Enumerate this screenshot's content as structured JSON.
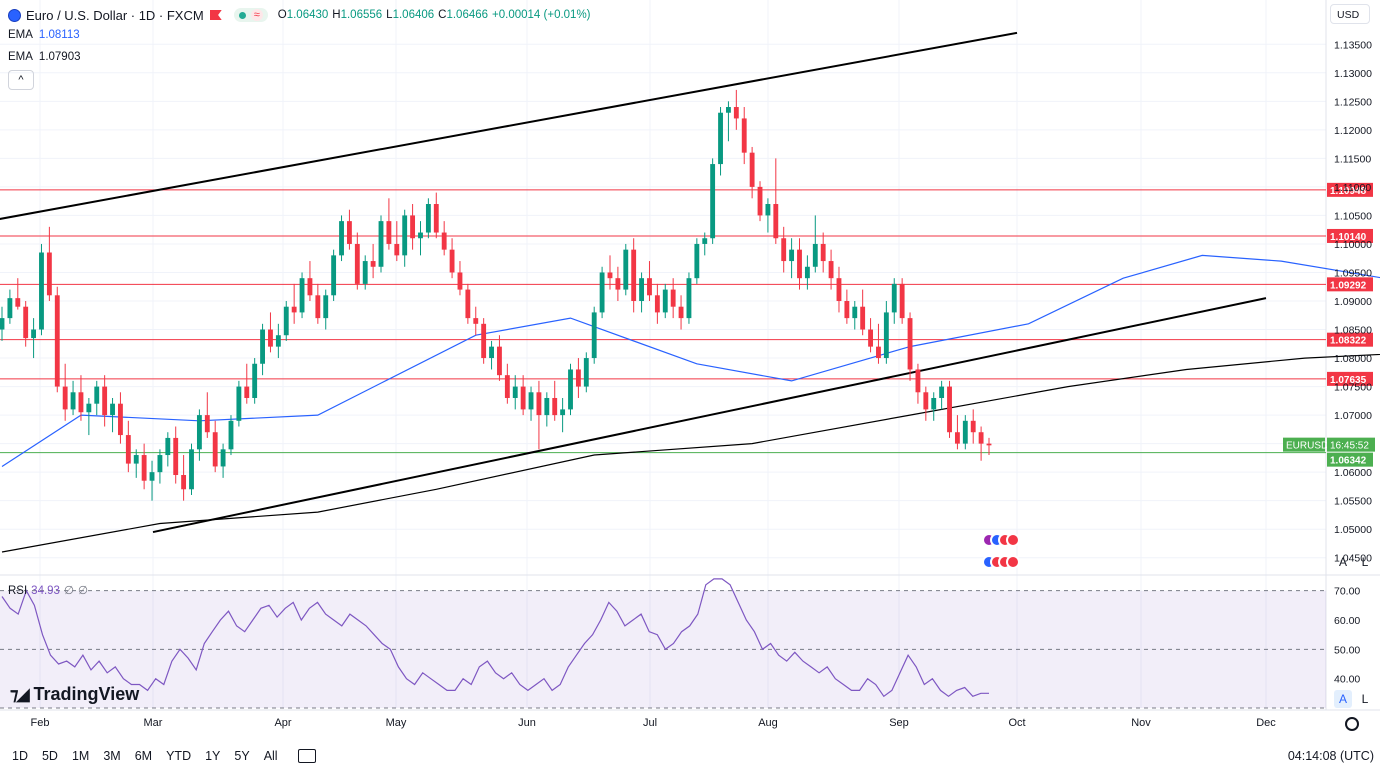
{
  "header": {
    "title": "Euro / U.S. Dollar · 1D · FXCM",
    "ohlc": {
      "o_label": "O",
      "o": "1.06430",
      "h_label": "H",
      "h": "1.06556",
      "l_label": "L",
      "l": "1.06406",
      "c_label": "C",
      "c": "1.06466",
      "chg": "+0.00014 (+0.01%)"
    },
    "ema1": {
      "label": "EMA",
      "value": "1.08113"
    },
    "ema2": {
      "label": "EMA",
      "value": "1.07903"
    },
    "collapse_glyph": "^"
  },
  "currency": "USD",
  "axis_buttons": {
    "auto": "A",
    "log": "L"
  },
  "rsi": {
    "label": "RSI",
    "value": "34.93",
    "z1": "∅",
    "z2": "∅"
  },
  "logo": "TradingView",
  "bottom_toolbar": {
    "timeframes": [
      "1D",
      "5D",
      "1M",
      "3M",
      "6M",
      "YTD",
      "1Y",
      "5Y",
      "All"
    ],
    "clock": "04:14:08 (UTC)"
  },
  "colors": {
    "up": "#089981",
    "down": "#f23645",
    "ema_fast": "#2962ff",
    "ema_slow": "#000000",
    "rsi": "#7e57c2",
    "hline": "#f23645",
    "current": "#4caf50"
  },
  "chart_data": {
    "type": "candlestick",
    "symbol": "EURUSD",
    "y_ticks": [
      "1.13500",
      "1.13000",
      "1.12500",
      "1.12000",
      "1.11500",
      "1.11000",
      "1.10500",
      "1.10000",
      "1.09500",
      "1.09000",
      "1.08500",
      "1.08000",
      "1.07500",
      "1.07000",
      "1.06500",
      "1.06000",
      "1.05500",
      "1.05000",
      "1.04500"
    ],
    "ylim": [
      1.0425,
      1.1375
    ],
    "x_labels": [
      "Feb",
      "Mar",
      "Apr",
      "May",
      "Jun",
      "Jul",
      "Aug",
      "Sep",
      "Oct",
      "Nov",
      "Dec"
    ],
    "horizontal_levels": [
      1.10948,
      1.1014,
      1.09292,
      1.08322,
      1.07635
    ],
    "level_labels": [
      "1.10948",
      "1.10140",
      "1.09292",
      "1.08322",
      "1.07635"
    ],
    "current_price": "1.06342",
    "current_time": "16:45:52",
    "candles": [
      [
        1.085,
        1.089,
        1.083,
        1.087
      ],
      [
        1.087,
        1.092,
        1.086,
        1.0905
      ],
      [
        1.0905,
        1.094,
        1.0885,
        1.089
      ],
      [
        1.089,
        1.09,
        1.082,
        1.0835
      ],
      [
        1.0835,
        1.087,
        1.08,
        1.085
      ],
      [
        1.085,
        1.1,
        1.084,
        1.0985
      ],
      [
        1.0985,
        1.103,
        1.09,
        1.091
      ],
      [
        1.091,
        1.0925,
        1.074,
        1.075
      ],
      [
        1.075,
        1.079,
        1.069,
        1.071
      ],
      [
        1.071,
        1.076,
        1.07,
        1.074
      ],
      [
        1.074,
        1.077,
        1.069,
        1.0705
      ],
      [
        1.0705,
        1.073,
        1.0665,
        1.072
      ],
      [
        1.072,
        1.076,
        1.07,
        1.075
      ],
      [
        1.075,
        1.077,
        1.068,
        1.07
      ],
      [
        1.07,
        1.073,
        1.067,
        1.072
      ],
      [
        1.072,
        1.074,
        1.065,
        1.0665
      ],
      [
        1.0665,
        1.069,
        1.06,
        1.0615
      ],
      [
        1.0615,
        1.064,
        1.059,
        1.063
      ],
      [
        1.063,
        1.065,
        1.057,
        1.0585
      ],
      [
        1.0585,
        1.062,
        1.055,
        1.06
      ],
      [
        1.06,
        1.064,
        1.058,
        1.063
      ],
      [
        1.063,
        1.067,
        1.061,
        1.066
      ],
      [
        1.066,
        1.068,
        1.058,
        1.0595
      ],
      [
        1.0595,
        1.063,
        1.055,
        1.057
      ],
      [
        1.057,
        1.065,
        1.056,
        1.064
      ],
      [
        1.064,
        1.071,
        1.062,
        1.07
      ],
      [
        1.07,
        1.074,
        1.066,
        1.067
      ],
      [
        1.067,
        1.069,
        1.06,
        1.061
      ],
      [
        1.061,
        1.065,
        1.059,
        1.064
      ],
      [
        1.064,
        1.07,
        1.063,
        1.069
      ],
      [
        1.069,
        1.076,
        1.068,
        1.075
      ],
      [
        1.075,
        1.079,
        1.072,
        1.073
      ],
      [
        1.073,
        1.08,
        1.072,
        1.079
      ],
      [
        1.079,
        1.086,
        1.077,
        1.085
      ],
      [
        1.085,
        1.088,
        1.081,
        1.082
      ],
      [
        1.082,
        1.086,
        1.08,
        1.084
      ],
      [
        1.084,
        1.09,
        1.083,
        1.089
      ],
      [
        1.089,
        1.093,
        1.086,
        1.088
      ],
      [
        1.088,
        1.095,
        1.087,
        1.094
      ],
      [
        1.094,
        1.097,
        1.09,
        1.091
      ],
      [
        1.091,
        1.093,
        1.086,
        1.087
      ],
      [
        1.087,
        1.092,
        1.085,
        1.091
      ],
      [
        1.091,
        1.099,
        1.09,
        1.098
      ],
      [
        1.098,
        1.105,
        1.097,
        1.104
      ],
      [
        1.104,
        1.106,
        1.099,
        1.1
      ],
      [
        1.1,
        1.102,
        1.092,
        1.093
      ],
      [
        1.093,
        1.098,
        1.092,
        1.097
      ],
      [
        1.097,
        1.1,
        1.094,
        1.096
      ],
      [
        1.096,
        1.105,
        1.095,
        1.104
      ],
      [
        1.104,
        1.108,
        1.099,
        1.1
      ],
      [
        1.1,
        1.104,
        1.097,
        1.098
      ],
      [
        1.098,
        1.106,
        1.096,
        1.105
      ],
      [
        1.105,
        1.107,
        1.099,
        1.101
      ],
      [
        1.101,
        1.104,
        1.098,
        1.102
      ],
      [
        1.102,
        1.108,
        1.101,
        1.107
      ],
      [
        1.107,
        1.109,
        1.101,
        1.102
      ],
      [
        1.102,
        1.104,
        1.098,
        1.099
      ],
      [
        1.099,
        1.101,
        1.094,
        1.095
      ],
      [
        1.095,
        1.097,
        1.091,
        1.092
      ],
      [
        1.092,
        1.093,
        1.086,
        1.087
      ],
      [
        1.087,
        1.089,
        1.084,
        1.086
      ],
      [
        1.086,
        1.087,
        1.079,
        1.08
      ],
      [
        1.08,
        1.083,
        1.078,
        1.082
      ],
      [
        1.082,
        1.084,
        1.076,
        1.077
      ],
      [
        1.077,
        1.079,
        1.072,
        1.073
      ],
      [
        1.073,
        1.077,
        1.071,
        1.075
      ],
      [
        1.075,
        1.077,
        1.07,
        1.071
      ],
      [
        1.071,
        1.075,
        1.069,
        1.074
      ],
      [
        1.074,
        1.076,
        1.064,
        1.07
      ],
      [
        1.07,
        1.074,
        1.068,
        1.073
      ],
      [
        1.073,
        1.076,
        1.069,
        1.07
      ],
      [
        1.07,
        1.073,
        1.067,
        1.071
      ],
      [
        1.071,
        1.079,
        1.07,
        1.078
      ],
      [
        1.078,
        1.08,
        1.073,
        1.075
      ],
      [
        1.075,
        1.081,
        1.074,
        1.08
      ],
      [
        1.08,
        1.089,
        1.079,
        1.088
      ],
      [
        1.088,
        1.096,
        1.087,
        1.095
      ],
      [
        1.095,
        1.098,
        1.092,
        1.094
      ],
      [
        1.094,
        1.096,
        1.09,
        1.092
      ],
      [
        1.092,
        1.1,
        1.091,
        1.099
      ],
      [
        1.099,
        1.101,
        1.088,
        1.09
      ],
      [
        1.09,
        1.095,
        1.088,
        1.094
      ],
      [
        1.094,
        1.097,
        1.09,
        1.091
      ],
      [
        1.091,
        1.093,
        1.086,
        1.088
      ],
      [
        1.088,
        1.093,
        1.087,
        1.092
      ],
      [
        1.092,
        1.094,
        1.087,
        1.089
      ],
      [
        1.089,
        1.091,
        1.085,
        1.087
      ],
      [
        1.087,
        1.095,
        1.086,
        1.094
      ],
      [
        1.094,
        1.101,
        1.093,
        1.1
      ],
      [
        1.1,
        1.102,
        1.098,
        1.101
      ],
      [
        1.101,
        1.115,
        1.1,
        1.114
      ],
      [
        1.114,
        1.124,
        1.112,
        1.123
      ],
      [
        1.123,
        1.125,
        1.118,
        1.124
      ],
      [
        1.124,
        1.127,
        1.12,
        1.122
      ],
      [
        1.122,
        1.124,
        1.114,
        1.116
      ],
      [
        1.116,
        1.117,
        1.108,
        1.11
      ],
      [
        1.11,
        1.111,
        1.104,
        1.105
      ],
      [
        1.105,
        1.108,
        1.102,
        1.107
      ],
      [
        1.107,
        1.115,
        1.1,
        1.101
      ],
      [
        1.101,
        1.103,
        1.095,
        1.097
      ],
      [
        1.097,
        1.101,
        1.094,
        1.099
      ],
      [
        1.099,
        1.101,
        1.092,
        1.094
      ],
      [
        1.094,
        1.098,
        1.092,
        1.096
      ],
      [
        1.096,
        1.105,
        1.095,
        1.1
      ],
      [
        1.1,
        1.102,
        1.095,
        1.097
      ],
      [
        1.097,
        1.099,
        1.092,
        1.094
      ],
      [
        1.094,
        1.096,
        1.088,
        1.09
      ],
      [
        1.09,
        1.092,
        1.086,
        1.087
      ],
      [
        1.087,
        1.09,
        1.085,
        1.089
      ],
      [
        1.089,
        1.092,
        1.084,
        1.085
      ],
      [
        1.085,
        1.087,
        1.081,
        1.082
      ],
      [
        1.082,
        1.086,
        1.079,
        1.08
      ],
      [
        1.08,
        1.09,
        1.079,
        1.088
      ],
      [
        1.088,
        1.094,
        1.086,
        1.093
      ],
      [
        1.093,
        1.094,
        1.086,
        1.087
      ],
      [
        1.087,
        1.088,
        1.076,
        1.078
      ],
      [
        1.078,
        1.079,
        1.072,
        1.074
      ],
      [
        1.074,
        1.075,
        1.069,
        1.071
      ],
      [
        1.071,
        1.074,
        1.069,
        1.073
      ],
      [
        1.073,
        1.076,
        1.071,
        1.075
      ],
      [
        1.075,
        1.076,
        1.066,
        1.067
      ],
      [
        1.067,
        1.07,
        1.064,
        1.065
      ],
      [
        1.065,
        1.07,
        1.064,
        1.069
      ],
      [
        1.069,
        1.071,
        1.065,
        1.067
      ],
      [
        1.067,
        1.068,
        1.062,
        1.065
      ],
      [
        1.065,
        1.066,
        1.063,
        1.0647
      ]
    ],
    "ema_fast": [
      [
        0,
        1.061
      ],
      [
        10,
        1.07
      ],
      [
        25,
        1.069
      ],
      [
        40,
        1.07
      ],
      [
        60,
        1.084
      ],
      [
        72,
        1.087
      ],
      [
        88,
        1.079
      ],
      [
        100,
        1.076
      ],
      [
        115,
        1.082
      ],
      [
        130,
        1.086
      ],
      [
        142,
        1.094
      ],
      [
        152,
        1.098
      ],
      [
        162,
        1.097
      ],
      [
        175,
        1.094
      ],
      [
        188,
        1.09
      ],
      [
        200,
        1.085
      ],
      [
        210,
        1.081
      ]
    ],
    "ema_slow": [
      [
        0,
        1.046
      ],
      [
        20,
        1.051
      ],
      [
        40,
        1.053
      ],
      [
        55,
        1.057
      ],
      [
        75,
        1.063
      ],
      [
        95,
        1.065
      ],
      [
        115,
        1.07
      ],
      [
        135,
        1.075
      ],
      [
        150,
        1.078
      ],
      [
        165,
        1.08
      ],
      [
        180,
        1.081
      ],
      [
        195,
        1.081
      ],
      [
        210,
        1.079
      ]
    ],
    "trendlines": [
      {
        "from": [
          "Jan",
          1.1015
        ],
        "to": [
          "Oct",
          1.137
        ]
      },
      {
        "from": [
          "Mar",
          1.0495
        ],
        "to": [
          "Dec",
          1.0905
        ]
      }
    ],
    "rsi_levels": [
      70,
      50,
      30
    ],
    "rsi_ticks": [
      "70.00",
      "60.00",
      "50.00",
      "40.00"
    ],
    "rsi_values": [
      68,
      64,
      62,
      70,
      65,
      55,
      48,
      45,
      46,
      44,
      48,
      43,
      46,
      42,
      44,
      40,
      38,
      38,
      36,
      40,
      38,
      46,
      50,
      47,
      43,
      52,
      56,
      60,
      63,
      58,
      56,
      60,
      64,
      65,
      61,
      64,
      66,
      60,
      64,
      66,
      62,
      60,
      58,
      62,
      60,
      58,
      55,
      52,
      50,
      44,
      40,
      38,
      42,
      40,
      38,
      36,
      36,
      40,
      38,
      44,
      46,
      42,
      40,
      42,
      38,
      36,
      38,
      40,
      36,
      38,
      44,
      48,
      52,
      55,
      60,
      66,
      63,
      58,
      60,
      62,
      56,
      55,
      50,
      52,
      56,
      58,
      62,
      72,
      74,
      74,
      72,
      66,
      60,
      56,
      50,
      52,
      48,
      46,
      49,
      46,
      44,
      42,
      44,
      40,
      38,
      36,
      36,
      40,
      38,
      34,
      36,
      42,
      48,
      44,
      38,
      40,
      36,
      34,
      36,
      37,
      34,
      35,
      35
    ]
  }
}
